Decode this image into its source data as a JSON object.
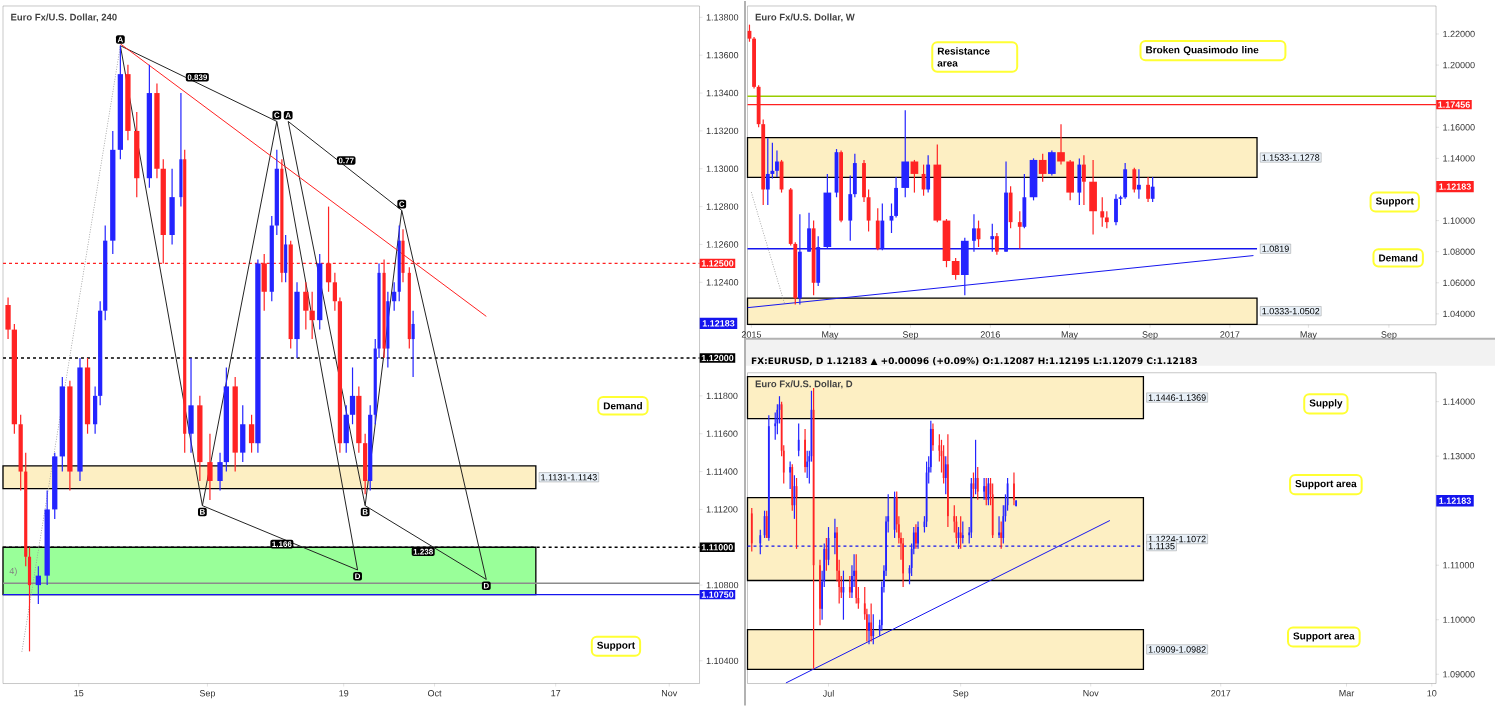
{
  "chart_data": [
    {
      "type": "candlestick",
      "title": "Euro Fx/U.S. Dollar, 240",
      "xlim": [
        "2016-08-05",
        "2016-11-05"
      ],
      "ylim": [
        1.1028,
        1.1386
      ],
      "xticks": [
        {
          "value": "2016-08-15",
          "label": "15"
        },
        {
          "value": "2016-09-01",
          "label": "Sep"
        },
        {
          "value": "2016-09-19",
          "label": "19"
        },
        {
          "value": "2016-10-01",
          "label": "Oct"
        },
        {
          "value": "2016-10-17",
          "label": "17"
        },
        {
          "value": "2016-11-01",
          "label": "Nov"
        }
      ],
      "yticks": [
        {
          "value": 1.104,
          "label": "1.10400"
        },
        {
          "value": 1.108,
          "label": "1.10800"
        },
        {
          "value": 1.112,
          "label": "1.11200"
        },
        {
          "value": 1.114,
          "label": "1.11400"
        },
        {
          "value": 1.116,
          "label": "1.11600"
        },
        {
          "value": 1.118,
          "label": "1.11800"
        },
        {
          "value": 1.124,
          "label": "1.12400"
        },
        {
          "value": 1.126,
          "label": "1.12600"
        },
        {
          "value": 1.128,
          "label": "1.12800"
        },
        {
          "value": 1.13,
          "label": "1.13000"
        },
        {
          "value": 1.132,
          "label": "1.13200"
        },
        {
          "value": 1.134,
          "label": "1.13400"
        },
        {
          "value": 1.136,
          "label": "1.13600"
        },
        {
          "value": 1.138,
          "label": "1.13800"
        }
      ],
      "x": [
        "2016-08-05T16:00",
        "2016-08-06T12:00",
        "2016-08-07T08:00",
        "2016-08-08T00:00",
        "2016-08-08T12:00",
        "2016-08-09T16:00",
        "2016-08-10T20:00",
        "2016-08-11T20:00",
        "2016-08-12T20:00",
        "2016-08-13T20:00",
        "2016-08-15T04:00",
        "2016-08-16T04:00",
        "2016-08-17T04:00",
        "2016-08-17T20:00",
        "2016-08-18T12:00",
        "2016-08-19T12:00",
        "2016-08-20T12:00",
        "2016-08-21T12:00",
        "2016-08-22T16:00",
        "2016-08-24T08:00",
        "2016-08-25T08:00",
        "2016-08-26T04:00",
        "2016-08-27T08:00",
        "2016-08-28T12:00",
        "2016-08-29T00:00",
        "2016-08-29T20:00",
        "2016-08-31T00:00",
        "2016-09-01T08:00",
        "2016-09-02T16:00",
        "2016-09-03T12:00",
        "2016-09-04T16:00",
        "2016-09-05T16:00",
        "2016-09-06T20:00",
        "2016-09-07T16:00",
        "2016-09-08T12:00",
        "2016-09-09T12:00",
        "2016-09-10T04:00",
        "2016-09-10T20:00",
        "2016-09-11T08:00",
        "2016-09-12T00:00",
        "2016-09-12T20:00",
        "2016-09-14T00:00",
        "2016-09-14T20:00",
        "2016-09-15T20:00",
        "2016-09-17T00:00",
        "2016-09-17T20:00",
        "2016-09-18T12:00",
        "2016-09-19T08:00",
        "2016-09-20T04:00",
        "2016-09-21T00:00",
        "2016-09-21T20:00",
        "2016-09-22T12:00",
        "2016-09-23T04:00",
        "2016-09-23T16:00",
        "2016-09-24T08:00",
        "2016-09-24T20:00",
        "2016-09-25T16:00",
        "2016-09-26T08:00",
        "2016-09-26T20:00",
        "2016-09-27T16:00",
        "2016-09-28T04:00"
      ],
      "ohlc": [
        [
          1.1228,
          1.1232,
          1.121,
          1.1215
        ],
        [
          1.1215,
          1.1218,
          1.116,
          1.1165
        ],
        [
          1.1165,
          1.117,
          1.113,
          1.114
        ],
        [
          1.114,
          1.115,
          1.109,
          1.1095
        ],
        [
          1.1095,
          1.11,
          1.1045,
          1.108
        ],
        [
          1.108,
          1.109,
          1.107,
          1.1085
        ],
        [
          1.1085,
          1.113,
          1.108,
          1.112
        ],
        [
          1.112,
          1.115,
          1.1115,
          1.1148
        ],
        [
          1.1148,
          1.119,
          1.114,
          1.1185
        ],
        [
          1.1185,
          1.1188,
          1.113,
          1.114
        ],
        [
          1.114,
          1.12,
          1.1135,
          1.1195
        ],
        [
          1.1195,
          1.12,
          1.116,
          1.1165
        ],
        [
          1.1165,
          1.1185,
          1.116,
          1.118
        ],
        [
          1.118,
          1.123,
          1.1175,
          1.1225
        ],
        [
          1.1225,
          1.127,
          1.122,
          1.1262
        ],
        [
          1.1262,
          1.132,
          1.1255,
          1.131
        ],
        [
          1.131,
          1.1365,
          1.1305,
          1.135
        ],
        [
          1.135,
          1.1355,
          1.1315,
          1.132
        ],
        [
          1.132,
          1.133,
          1.1285,
          1.1295
        ],
        [
          1.1295,
          1.1355,
          1.129,
          1.134
        ],
        [
          1.134,
          1.1345,
          1.1295,
          1.13
        ],
        [
          1.13,
          1.1305,
          1.125,
          1.1265
        ],
        [
          1.1265,
          1.13,
          1.126,
          1.1285
        ],
        [
          1.1285,
          1.134,
          1.128,
          1.1305
        ],
        [
          1.1305,
          1.131,
          1.115,
          1.116
        ],
        [
          1.116,
          1.12,
          1.115,
          1.1175
        ],
        [
          1.1175,
          1.118,
          1.1135,
          1.1145
        ],
        [
          1.1145,
          1.116,
          1.1125,
          1.1135
        ],
        [
          1.1135,
          1.115,
          1.113,
          1.1145
        ],
        [
          1.1145,
          1.1195,
          1.114,
          1.1185
        ],
        [
          1.1185,
          1.119,
          1.114,
          1.115
        ],
        [
          1.115,
          1.1175,
          1.1145,
          1.1165
        ],
        [
          1.1165,
          1.117,
          1.115,
          1.1155
        ],
        [
          1.1155,
          1.1252,
          1.115,
          1.125
        ],
        [
          1.125,
          1.1255,
          1.1225,
          1.1235
        ],
        [
          1.1235,
          1.1275,
          1.123,
          1.127
        ],
        [
          1.127,
          1.131,
          1.1265,
          1.13
        ],
        [
          1.13,
          1.1305,
          1.124,
          1.1245
        ],
        [
          1.1245,
          1.1265,
          1.124,
          1.126
        ],
        [
          1.126,
          1.1262,
          1.1205,
          1.121
        ],
        [
          1.121,
          1.124,
          1.12,
          1.1235
        ],
        [
          1.1235,
          1.124,
          1.1215,
          1.1225
        ],
        [
          1.1225,
          1.1235,
          1.121,
          1.122
        ],
        [
          1.122,
          1.1255,
          1.1215,
          1.125
        ],
        [
          1.125,
          1.128,
          1.1235,
          1.124
        ],
        [
          1.124,
          1.1245,
          1.1225,
          1.123
        ],
        [
          1.123,
          1.1232,
          1.115,
          1.1155
        ],
        [
          1.1155,
          1.1175,
          1.115,
          1.117
        ],
        [
          1.117,
          1.1195,
          1.1165,
          1.118
        ],
        [
          1.118,
          1.1185,
          1.115,
          1.1155
        ],
        [
          1.1155,
          1.116,
          1.1128,
          1.1135
        ],
        [
          1.1135,
          1.1175,
          1.113,
          1.117
        ],
        [
          1.117,
          1.121,
          1.1165,
          1.1205
        ],
        [
          1.1205,
          1.125,
          1.12,
          1.1245
        ],
        [
          1.1245,
          1.1252,
          1.12,
          1.1205
        ],
        [
          1.1205,
          1.1235,
          1.1195,
          1.123
        ],
        [
          1.123,
          1.124,
          1.1225,
          1.1235
        ],
        [
          1.1235,
          1.127,
          1.123,
          1.1262
        ],
        [
          1.1262,
          1.1268,
          1.124,
          1.1245
        ],
        [
          1.1245,
          1.1248,
          1.1205,
          1.121
        ],
        [
          1.121,
          1.1225,
          1.119,
          1.1218
        ]
      ],
      "colors": [
        "#ff2424",
        "#ff2424",
        "#ff2424",
        "#ff2424",
        "#ff2424",
        "#2424ff",
        "#2424ff",
        "#2424ff",
        "#2424ff",
        "#ff2424",
        "#2424ff",
        "#ff2424",
        "#2424ff",
        "#2424ff",
        "#2424ff",
        "#2424ff",
        "#2424ff",
        "#ff2424",
        "#ff2424",
        "#2424ff",
        "#ff2424",
        "#ff2424",
        "#2424ff",
        "#2424ff",
        "#ff2424",
        "#2424ff",
        "#ff2424",
        "#ff2424",
        "#2424ff",
        "#2424ff",
        "#ff2424",
        "#2424ff",
        "#ff2424",
        "#2424ff",
        "#ff2424",
        "#2424ff",
        "#2424ff",
        "#ff2424",
        "#2424ff",
        "#ff2424",
        "#2424ff",
        "#ff2424",
        "#ff2424",
        "#2424ff",
        "#ff2424",
        "#ff2424",
        "#ff2424",
        "#2424ff",
        "#2424ff",
        "#ff2424",
        "#ff2424",
        "#2424ff",
        "#2424ff",
        "#2424ff",
        "#ff2424",
        "#2424ff",
        "#2424ff",
        "#2424ff",
        "#ff2424",
        "#ff2424",
        "#2424ff"
      ],
      "series": [
        {
          "type": "line",
          "color": "#222222",
          "line_style": "solid",
          "x": [
            "2016-08-20T12:00",
            "2016-08-31T08:00",
            "2016-09-10T04:00",
            "2016-09-20T20:00"
          ],
          "values": [
            1.1365,
            1.1122,
            1.1325,
            1.1088
          ]
        },
        {
          "type": "line",
          "color": "#222222",
          "line_style": "solid",
          "x": [
            "2016-08-20T12:00",
            "2016-09-10T04:00"
          ],
          "values": [
            1.1365,
            1.1325
          ]
        },
        {
          "type": "line",
          "color": "#222222",
          "line_style": "solid",
          "x": [
            "2016-08-31T08:00",
            "2016-09-20T20:00"
          ],
          "values": [
            1.1122,
            1.1088
          ]
        },
        {
          "type": "line",
          "color": "#222222",
          "line_style": "solid",
          "x": [
            "2016-09-11T16:00",
            "2016-09-21T20:00",
            "2016-09-26T16:00",
            "2016-10-07T20:00"
          ],
          "values": [
            1.1325,
            1.1122,
            1.1278,
            1.1083
          ]
        },
        {
          "type": "line",
          "color": "#222222",
          "line_style": "solid",
          "x": [
            "2016-09-11T16:00",
            "2016-09-26T16:00"
          ],
          "values": [
            1.1325,
            1.1278
          ]
        },
        {
          "type": "line",
          "color": "#222222",
          "line_style": "solid",
          "x": [
            "2016-09-21T20:00",
            "2016-10-07T20:00"
          ],
          "values": [
            1.1122,
            1.1083
          ]
        },
        {
          "type": "line",
          "color": "#ff2020",
          "line_style": "solid",
          "x": [
            "2016-08-20T12:00",
            "2016-10-07T20:00"
          ],
          "values": [
            1.1366,
            1.1222
          ]
        },
        {
          "type": "line",
          "color": "#999999",
          "line_style": "dotted",
          "x": [
            "2016-08-07T12:00",
            "2016-08-20T12:00"
          ],
          "values": [
            1.1045,
            1.1365
          ]
        }
      ],
      "ref_lines": [
        {
          "axis": "y",
          "value": 1.125,
          "label": "1.12500",
          "color": "#ff2020",
          "line_style": "dashed"
        },
        {
          "axis": "y",
          "value": 1.12,
          "label": "1.12000",
          "color": "#000000",
          "line_style": "dashed"
        },
        {
          "axis": "y",
          "value": 1.11,
          "label": "1.11000",
          "color": "#000000",
          "line_style": "dashed"
        },
        {
          "axis": "y",
          "value": 1.1081,
          "color": "#8c8c8c",
          "line_style": "solid"
        },
        {
          "axis": "y",
          "value": 1.1075,
          "label": "1.10750",
          "color": "#1515ee",
          "line_style": "solid"
        }
      ],
      "bands": [
        {
          "axis": "y",
          "from": 1.1131,
          "to": 1.1143,
          "label": "1.1131-1.1143",
          "color": "#fdefc3"
        },
        {
          "axis": "y",
          "from": 1.1075,
          "to": 1.11,
          "color": "#99ff99"
        }
      ],
      "annotations": [
        {
          "text": "A",
          "x": "2016-08-20T12:00",
          "y": 1.1365
        },
        {
          "text": "B",
          "x": "2016-08-31T08:00",
          "y": 1.1122
        },
        {
          "text": "C",
          "x": "2016-09-10T04:00",
          "y": 1.1325
        },
        {
          "text": "D",
          "x": "2016-09-20T20:00",
          "y": 1.1088
        },
        {
          "text": "A",
          "x": "2016-09-11T16:00",
          "y": 1.1325
        },
        {
          "text": "B",
          "x": "2016-09-21T20:00",
          "y": 1.1122
        },
        {
          "text": "C",
          "x": "2016-09-26T16:00",
          "y": 1.1278
        },
        {
          "text": "D",
          "x": "2016-10-07T20:00",
          "y": 1.1083
        },
        {
          "text": "0.839",
          "x": "2016-08-30T16:00",
          "y": 1.1345
        },
        {
          "text": "0.77",
          "x": "2016-09-19T08:00",
          "y": 1.1301
        },
        {
          "text": "1.166",
          "x": "2016-09-10T20:00",
          "y": 1.1105
        },
        {
          "text": "1.238",
          "x": "2016-09-29T12:00",
          "y": 1.1101
        },
        "Demand",
        "Support",
        "4)",
        {
          "text": "1.12183",
          "y": 1.12183
        }
      ]
    },
    {
      "type": "candlestick",
      "title": "Euro Fx/U.S. Dollar, W",
      "xlim": [
        "2014-12-26",
        "2017-11-12"
      ],
      "ylim": [
        1.033,
        1.238
      ],
      "xticks": [
        {
          "value": "2015-01-01",
          "label": "2015"
        },
        {
          "value": "2015-05-01",
          "label": "May"
        },
        {
          "value": "2015-09-01",
          "label": "Sep"
        },
        {
          "value": "2016-01-01",
          "label": "2016"
        },
        {
          "value": "2016-05-01",
          "label": "May"
        },
        {
          "value": "2016-09-01",
          "label": "Sep"
        },
        {
          "value": "2017-01-01",
          "label": "2017"
        },
        {
          "value": "2017-05-01",
          "label": "May"
        },
        {
          "value": "2017-09-01",
          "label": "Sep"
        }
      ],
      "yticks": [
        {
          "value": 1.04,
          "label": "1.04000"
        },
        {
          "value": 1.06,
          "label": "1.06000"
        },
        {
          "value": 1.08,
          "label": "1.08000"
        },
        {
          "value": 1.1,
          "label": "1.10000"
        },
        {
          "value": 1.14,
          "label": "1.14000"
        },
        {
          "value": 1.16,
          "label": "1.16000"
        },
        {
          "value": 1.2,
          "label": "1.20000"
        },
        {
          "value": 1.22,
          "label": "1.22000"
        }
      ],
      "x": [
        "2014-12-29",
        "2015-01-05",
        "2015-01-12",
        "2015-01-19",
        "2015-01-26",
        "2015-02-02",
        "2015-02-09",
        "2015-02-16",
        "2015-03-02",
        "2015-03-09",
        "2015-03-16",
        "2015-03-30",
        "2015-04-06",
        "2015-04-13",
        "2015-04-27",
        "2015-05-11",
        "2015-05-18",
        "2015-06-01",
        "2015-06-08",
        "2015-06-22",
        "2015-06-29",
        "2015-07-13",
        "2015-07-20",
        "2015-08-03",
        "2015-08-10",
        "2015-08-24",
        "2015-09-07",
        "2015-09-21",
        "2015-09-28",
        "2015-10-12",
        "2015-10-26",
        "2015-11-09",
        "2015-11-23",
        "2015-12-07",
        "2015-12-14",
        "2016-01-04",
        "2016-01-11",
        "2016-01-25",
        "2016-02-01",
        "2016-02-15",
        "2016-02-22",
        "2016-03-07",
        "2016-03-21",
        "2016-04-04",
        "2016-04-18",
        "2016-05-02",
        "2016-05-16",
        "2016-05-23",
        "2016-06-06",
        "2016-06-20",
        "2016-06-27",
        "2016-07-11",
        "2016-07-18",
        "2016-07-25",
        "2016-08-08",
        "2016-08-15",
        "2016-08-29",
        "2016-09-05"
      ],
      "ohlc": [
        [
          1.222,
          1.226,
          1.215,
          1.217
        ],
        [
          1.217,
          1.218,
          1.185,
          1.186
        ],
        [
          1.186,
          1.187,
          1.16,
          1.162
        ],
        [
          1.162,
          1.165,
          1.11,
          1.12
        ],
        [
          1.12,
          1.153,
          1.11,
          1.13
        ],
        [
          1.13,
          1.15,
          1.127,
          1.132
        ],
        [
          1.132,
          1.145,
          1.128,
          1.138
        ],
        [
          1.138,
          1.139,
          1.118,
          1.12
        ],
        [
          1.12,
          1.121,
          1.084,
          1.085
        ],
        [
          1.085,
          1.086,
          1.046,
          1.05
        ],
        [
          1.05,
          1.104,
          1.046,
          1.08
        ],
        [
          1.08,
          1.105,
          1.08,
          1.095
        ],
        [
          1.095,
          1.1,
          1.052,
          1.06
        ],
        [
          1.06,
          1.09,
          1.058,
          1.083
        ],
        [
          1.083,
          1.13,
          1.082,
          1.118
        ],
        [
          1.118,
          1.146,
          1.115,
          1.144
        ],
        [
          1.144,
          1.145,
          1.099,
          1.1
        ],
        [
          1.1,
          1.129,
          1.087,
          1.117
        ],
        [
          1.117,
          1.143,
          1.115,
          1.137
        ],
        [
          1.137,
          1.139,
          1.112,
          1.115
        ],
        [
          1.115,
          1.12,
          1.093,
          1.1
        ],
        [
          1.1,
          1.108,
          1.081,
          1.082
        ],
        [
          1.082,
          1.111,
          1.081,
          1.1
        ],
        [
          1.1,
          1.111,
          1.092,
          1.103
        ],
        [
          1.103,
          1.128,
          1.102,
          1.121
        ],
        [
          1.121,
          1.171,
          1.115,
          1.138
        ],
        [
          1.138,
          1.139,
          1.118,
          1.13
        ],
        [
          1.13,
          1.136,
          1.116,
          1.12
        ],
        [
          1.12,
          1.142,
          1.118,
          1.136
        ],
        [
          1.136,
          1.149,
          1.099,
          1.1
        ],
        [
          1.1,
          1.101,
          1.07,
          1.074
        ],
        [
          1.074,
          1.076,
          1.062,
          1.065
        ],
        [
          1.065,
          1.089,
          1.052,
          1.087
        ],
        [
          1.087,
          1.104,
          1.08,
          1.095
        ],
        [
          1.095,
          1.1,
          1.083,
          1.088
        ],
        [
          1.088,
          1.098,
          1.08,
          1.09
        ],
        [
          1.09,
          1.092,
          1.078,
          1.08
        ],
        [
          1.08,
          1.138,
          1.08,
          1.118
        ],
        [
          1.118,
          1.122,
          1.095,
          1.099
        ],
        [
          1.099,
          1.106,
          1.082,
          1.096
        ],
        [
          1.096,
          1.13,
          1.095,
          1.115
        ],
        [
          1.115,
          1.14,
          1.113,
          1.139
        ],
        [
          1.139,
          1.143,
          1.125,
          1.13
        ],
        [
          1.13,
          1.145,
          1.129,
          1.144
        ],
        [
          1.144,
          1.162,
          1.136,
          1.138
        ],
        [
          1.138,
          1.139,
          1.113,
          1.118
        ],
        [
          1.118,
          1.14,
          1.11,
          1.136
        ],
        [
          1.136,
          1.142,
          1.11,
          1.125
        ],
        [
          1.125,
          1.139,
          1.091,
          1.106
        ],
        [
          1.106,
          1.115,
          1.096,
          1.102
        ],
        [
          1.102,
          1.106,
          1.095,
          1.099
        ],
        [
          1.099,
          1.117,
          1.097,
          1.114
        ],
        [
          1.114,
          1.116,
          1.11,
          1.115
        ],
        [
          1.115,
          1.137,
          1.114,
          1.133
        ],
        [
          1.133,
          1.134,
          1.118,
          1.12
        ],
        [
          1.12,
          1.133,
          1.114,
          1.123
        ],
        [
          1.123,
          1.128,
          1.112,
          1.114
        ],
        [
          1.114,
          1.128,
          1.112,
          1.1218
        ]
      ],
      "colors": [
        "#ff2424",
        "#ff2424",
        "#ff2424",
        "#ff2424",
        "#2424ff",
        "#2424ff",
        "#2424ff",
        "#ff2424",
        "#ff2424",
        "#ff2424",
        "#2424ff",
        "#2424ff",
        "#ff2424",
        "#2424ff",
        "#2424ff",
        "#2424ff",
        "#ff2424",
        "#2424ff",
        "#2424ff",
        "#ff2424",
        "#ff2424",
        "#ff2424",
        "#2424ff",
        "#2424ff",
        "#2424ff",
        "#2424ff",
        "#ff2424",
        "#ff2424",
        "#2424ff",
        "#ff2424",
        "#ff2424",
        "#ff2424",
        "#2424ff",
        "#2424ff",
        "#ff2424",
        "#2424ff",
        "#ff2424",
        "#2424ff",
        "#ff2424",
        "#ff2424",
        "#2424ff",
        "#2424ff",
        "#ff2424",
        "#2424ff",
        "#ff2424",
        "#ff2424",
        "#2424ff",
        "#ff2424",
        "#ff2424",
        "#ff2424",
        "#ff2424",
        "#2424ff",
        "#2424ff",
        "#2424ff",
        "#ff2424",
        "#2424ff",
        "#ff2424",
        "#2424ff"
      ],
      "series": [
        {
          "type": "line",
          "color": "#1515ee",
          "line_style": "solid",
          "x": [
            "2014-12-26",
            "2017-02-06"
          ],
          "values": [
            1.044,
            1.0775
          ]
        },
        {
          "type": "line",
          "color": "#999999",
          "line_style": "dotted",
          "x": [
            "2015-01-01",
            "2015-02-21"
          ],
          "values": [
            1.118,
            1.046
          ]
        }
      ],
      "ref_lines": [
        {
          "axis": "y",
          "value": 1.0819,
          "label": "1.0819",
          "color": "#1515ee",
          "line_style": "solid"
        },
        {
          "axis": "y",
          "value": 1.18,
          "color": "#99cc00",
          "line_style": "solid"
        },
        {
          "axis": "y",
          "value": 1.17456,
          "label": "1.17456",
          "color": "#ff2020",
          "line_style": "solid"
        }
      ],
      "bands": [
        {
          "axis": "y",
          "from": 1.1278,
          "to": 1.1533,
          "label": "1.1533-1.1278",
          "color": "#fdefc3"
        },
        {
          "axis": "y",
          "from": 1.0333,
          "to": 1.0502,
          "label": "1.0333-1.0502",
          "color": "#fdefc3"
        }
      ],
      "annotations": [
        "Resistance area",
        "Broken Quasimodo line",
        "Support",
        "Demand",
        {
          "text": "1.12183",
          "y": 1.12183
        }
      ]
    },
    {
      "type": "candlestick",
      "title": "Euro Fx/U.S. Dollar, D",
      "subtitle": "FX:EURUSD, D 1.12183 ▲ +0.00096 (+0.09%) O:1.12087 H:1.12195 L:1.12079 C:1.12183",
      "xlim": [
        "2016-05-24",
        "2017-04-12"
      ],
      "ylim": [
        1.0883,
        1.1453
      ],
      "xticks": [
        {
          "value": "2016-07-01",
          "label": "Jul"
        },
        {
          "value": "2016-09-01",
          "label": "Sep"
        },
        {
          "value": "2016-11-01",
          "label": "Nov"
        },
        {
          "value": "2017-01-01",
          "label": "2017"
        },
        {
          "value": "2017-03-01",
          "label": "Mar"
        },
        {
          "value": "2017-04-10",
          "label": "10"
        }
      ],
      "yticks": [
        {
          "value": 1.09,
          "label": "1.09000"
        },
        {
          "value": 1.1,
          "label": "1.10000"
        },
        {
          "value": 1.11,
          "label": "1.11000"
        },
        {
          "value": 1.13,
          "label": "1.13000"
        },
        {
          "value": 1.14,
          "label": "1.14000"
        }
      ],
      "x": [
        "2016-05-26",
        "2016-05-30",
        "2016-06-01",
        "2016-06-02",
        "2016-06-03",
        "2016-06-06",
        "2016-06-07",
        "2016-06-08",
        "2016-06-09",
        "2016-06-10",
        "2016-06-13",
        "2016-06-14",
        "2016-06-15",
        "2016-06-16",
        "2016-06-17",
        "2016-06-20",
        "2016-06-21",
        "2016-06-22",
        "2016-06-23",
        "2016-06-24",
        "2016-06-27",
        "2016-06-28",
        "2016-06-29",
        "2016-06-30",
        "2016-07-01",
        "2016-07-04",
        "2016-07-05",
        "2016-07-06",
        "2016-07-07",
        "2016-07-08",
        "2016-07-11",
        "2016-07-12",
        "2016-07-13",
        "2016-07-14",
        "2016-07-15",
        "2016-07-18",
        "2016-07-19",
        "2016-07-20",
        "2016-07-21",
        "2016-07-22",
        "2016-07-25",
        "2016-07-26",
        "2016-07-27",
        "2016-07-28",
        "2016-07-29",
        "2016-08-01",
        "2016-08-02",
        "2016-08-03",
        "2016-08-04",
        "2016-08-05",
        "2016-08-08",
        "2016-08-09",
        "2016-08-10",
        "2016-08-11",
        "2016-08-12",
        "2016-08-15",
        "2016-08-16",
        "2016-08-17",
        "2016-08-18",
        "2016-08-19",
        "2016-08-22",
        "2016-08-23",
        "2016-08-24",
        "2016-08-25",
        "2016-08-26",
        "2016-08-29",
        "2016-08-30",
        "2016-08-31",
        "2016-09-01",
        "2016-09-02",
        "2016-09-05",
        "2016-09-06",
        "2016-09-07",
        "2016-09-08",
        "2016-09-09",
        "2016-09-12",
        "2016-09-13",
        "2016-09-14",
        "2016-09-15",
        "2016-09-16",
        "2016-09-19",
        "2016-09-20",
        "2016-09-21",
        "2016-09-22",
        "2016-09-23",
        "2016-09-26",
        "2016-09-27"
      ],
      "ohlc": [
        [
          1.1195,
          1.1205,
          1.1125,
          1.114
        ],
        [
          1.114,
          1.1165,
          1.112,
          1.1155
        ],
        [
          1.1155,
          1.12,
          1.115,
          1.119
        ],
        [
          1.119,
          1.12,
          1.115,
          1.115
        ],
        [
          1.115,
          1.1375,
          1.1145,
          1.1355
        ],
        [
          1.1355,
          1.138,
          1.133,
          1.136
        ],
        [
          1.136,
          1.1395,
          1.134,
          1.1385
        ],
        [
          1.1385,
          1.141,
          1.136,
          1.1395
        ],
        [
          1.1395,
          1.14,
          1.13,
          1.131
        ],
        [
          1.131,
          1.132,
          1.125,
          1.127
        ],
        [
          1.127,
          1.129,
          1.124,
          1.128
        ],
        [
          1.128,
          1.1285,
          1.12,
          1.121
        ],
        [
          1.121,
          1.1265,
          1.1185,
          1.1245
        ],
        [
          1.1245,
          1.126,
          1.113,
          1.1225
        ],
        [
          1.131,
          1.136,
          1.13,
          1.133
        ],
        [
          1.133,
          1.135,
          1.127,
          1.128
        ],
        [
          1.128,
          1.131,
          1.126,
          1.129
        ],
        [
          1.129,
          1.131,
          1.125,
          1.13
        ],
        [
          1.13,
          1.142,
          1.129,
          1.1385
        ],
        [
          1.1385,
          1.1425,
          1.091,
          1.11
        ],
        [
          1.11,
          1.111,
          1.099,
          1.102
        ],
        [
          1.102,
          1.109,
          1.1,
          1.107
        ],
        [
          1.107,
          1.114,
          1.106,
          1.113
        ],
        [
          1.113,
          1.115,
          1.109,
          1.111
        ],
        [
          1.111,
          1.117,
          1.11,
          1.115
        ],
        [
          1.115,
          1.1185,
          1.112,
          1.116
        ],
        [
          1.116,
          1.117,
          1.107,
          1.109
        ],
        [
          1.109,
          1.111,
          1.103,
          1.106
        ],
        [
          1.106,
          1.108,
          1.104,
          1.105
        ],
        [
          1.105,
          1.109,
          1.1,
          1.106
        ],
        [
          1.106,
          1.108,
          1.104,
          1.105
        ],
        [
          1.105,
          1.11,
          1.104,
          1.108
        ],
        [
          1.108,
          1.112,
          1.106,
          1.109
        ],
        [
          1.109,
          1.112,
          1.103,
          1.104
        ],
        [
          1.104,
          1.106,
          1.102,
          1.103
        ],
        [
          1.103,
          1.106,
          1.1,
          1.101
        ],
        [
          1.101,
          1.102,
          1.096,
          1.098
        ],
        [
          1.098,
          1.101,
          1.0955,
          1.0995
        ],
        [
          1.0995,
          1.103,
          1.096,
          1.097
        ],
        [
          1.097,
          1.101,
          1.0955,
          1.098
        ],
        [
          1.098,
          1.1,
          1.097,
          1.099
        ],
        [
          1.099,
          1.107,
          1.098,
          1.106
        ],
        [
          1.106,
          1.11,
          1.105,
          1.109
        ],
        [
          1.109,
          1.119,
          1.108,
          1.118
        ],
        [
          1.118,
          1.123,
          1.116,
          1.119
        ],
        [
          1.1165,
          1.1235,
          1.115,
          1.1225
        ],
        [
          1.1225,
          1.1235,
          1.116,
          1.1175
        ],
        [
          1.1175,
          1.119,
          1.114,
          1.115
        ],
        [
          1.115,
          1.116,
          1.111,
          1.114
        ],
        [
          1.114,
          1.115,
          1.106,
          1.1085
        ],
        [
          1.1085,
          1.11,
          1.1065,
          1.1095
        ],
        [
          1.1095,
          1.114,
          1.108,
          1.113
        ],
        [
          1.113,
          1.117,
          1.112,
          1.116
        ],
        [
          1.116,
          1.1175,
          1.113,
          1.114
        ],
        [
          1.114,
          1.118,
          1.113,
          1.117
        ],
        [
          1.117,
          1.119,
          1.116,
          1.118
        ],
        [
          1.118,
          1.129,
          1.117,
          1.127
        ],
        [
          1.127,
          1.13,
          1.125,
          1.128
        ],
        [
          1.128,
          1.1365,
          1.127,
          1.135
        ],
        [
          1.135,
          1.136,
          1.131,
          1.132
        ],
        [
          1.132,
          1.134,
          1.129,
          1.131
        ],
        [
          1.131,
          1.133,
          1.127,
          1.13
        ],
        [
          1.13,
          1.132,
          1.125,
          1.126
        ],
        [
          1.126,
          1.13,
          1.123,
          1.1285
        ],
        [
          1.1285,
          1.134,
          1.117,
          1.119
        ],
        [
          1.119,
          1.121,
          1.116,
          1.118
        ],
        [
          1.118,
          1.119,
          1.114,
          1.115
        ],
        [
          1.115,
          1.117,
          1.113,
          1.116
        ],
        [
          1.116,
          1.119,
          1.113,
          1.115
        ],
        [
          1.115,
          1.118,
          1.114,
          1.1155
        ],
        [
          1.1155,
          1.117,
          1.114,
          1.116
        ],
        [
          1.116,
          1.126,
          1.115,
          1.125
        ],
        [
          1.125,
          1.127,
          1.1225,
          1.124
        ],
        [
          1.124,
          1.133,
          1.123,
          1.126
        ],
        [
          1.126,
          1.128,
          1.122,
          1.1235
        ],
        [
          1.1235,
          1.126,
          1.122,
          1.1245
        ],
        [
          1.1245,
          1.126,
          1.121,
          1.122
        ],
        [
          1.122,
          1.126,
          1.121,
          1.125
        ],
        [
          1.125,
          1.126,
          1.121,
          1.123
        ],
        [
          1.123,
          1.125,
          1.115,
          1.1155
        ],
        [
          1.1155,
          1.119,
          1.115,
          1.116
        ],
        [
          1.116,
          1.118,
          1.113,
          1.115
        ],
        [
          1.115,
          1.121,
          1.114,
          1.119
        ],
        [
          1.119,
          1.123,
          1.118,
          1.121
        ],
        [
          1.121,
          1.126,
          1.12,
          1.125
        ],
        [
          1.125,
          1.127,
          1.121,
          1.122
        ],
        [
          1.12087,
          1.12195,
          1.12079,
          1.12183
        ]
      ],
      "colors": [
        "#ff2424",
        "#2424ff",
        "#2424ff",
        "#ff2424",
        "#2424ff",
        "#2424ff",
        "#2424ff",
        "#2424ff",
        "#ff2424",
        "#ff2424",
        "#2424ff",
        "#ff2424",
        "#2424ff",
        "#ff2424",
        "#2424ff",
        "#ff2424",
        "#2424ff",
        "#2424ff",
        "#2424ff",
        "#ff2424",
        "#ff2424",
        "#2424ff",
        "#2424ff",
        "#ff2424",
        "#2424ff",
        "#2424ff",
        "#ff2424",
        "#ff2424",
        "#ff2424",
        "#2424ff",
        "#ff2424",
        "#2424ff",
        "#2424ff",
        "#ff2424",
        "#ff2424",
        "#ff2424",
        "#ff2424",
        "#2424ff",
        "#ff2424",
        "#2424ff",
        "#2424ff",
        "#2424ff",
        "#2424ff",
        "#2424ff",
        "#2424ff",
        "#2424ff",
        "#ff2424",
        "#ff2424",
        "#ff2424",
        "#ff2424",
        "#2424ff",
        "#2424ff",
        "#2424ff",
        "#ff2424",
        "#2424ff",
        "#2424ff",
        "#2424ff",
        "#2424ff",
        "#2424ff",
        "#ff2424",
        "#ff2424",
        "#ff2424",
        "#ff2424",
        "#2424ff",
        "#ff2424",
        "#ff2424",
        "#ff2424",
        "#2424ff",
        "#ff2424",
        "#2424ff",
        "#2424ff",
        "#2424ff",
        "#ff2424",
        "#2424ff",
        "#ff2424",
        "#2424ff",
        "#ff2424",
        "#2424ff",
        "#ff2424",
        "#ff2424",
        "#2424ff",
        "#ff2424",
        "#2424ff",
        "#2424ff",
        "#2424ff",
        "#ff2424",
        "#2424ff"
      ],
      "series": [
        {
          "type": "line",
          "color": "#1515ee",
          "line_style": "solid",
          "x": [
            "2016-06-11",
            "2016-11-10"
          ],
          "values": [
            1.0884,
            1.1182
          ]
        }
      ],
      "ref_lines": [
        {
          "axis": "y",
          "value": 1.1135,
          "label": "1.1135",
          "color": "#1515ee",
          "line_style": "dashed"
        }
      ],
      "bands": [
        {
          "axis": "y",
          "from": 1.1369,
          "to": 1.1446,
          "label": "1.1446-1.1369",
          "color": "#fdefc3"
        },
        {
          "axis": "y",
          "from": 1.1072,
          "to": 1.1224,
          "label": "1.1224-1.1072",
          "color": "#fdefc3"
        },
        {
          "axis": "y",
          "from": 1.0909,
          "to": 1.0982,
          "label": "1.0909-1.0982",
          "color": "#fdefc3"
        }
      ],
      "annotations": [
        "Supply",
        "Support area",
        "Support area",
        {
          "text": "1.12183",
          "y": 1.12183
        }
      ]
    }
  ]
}
